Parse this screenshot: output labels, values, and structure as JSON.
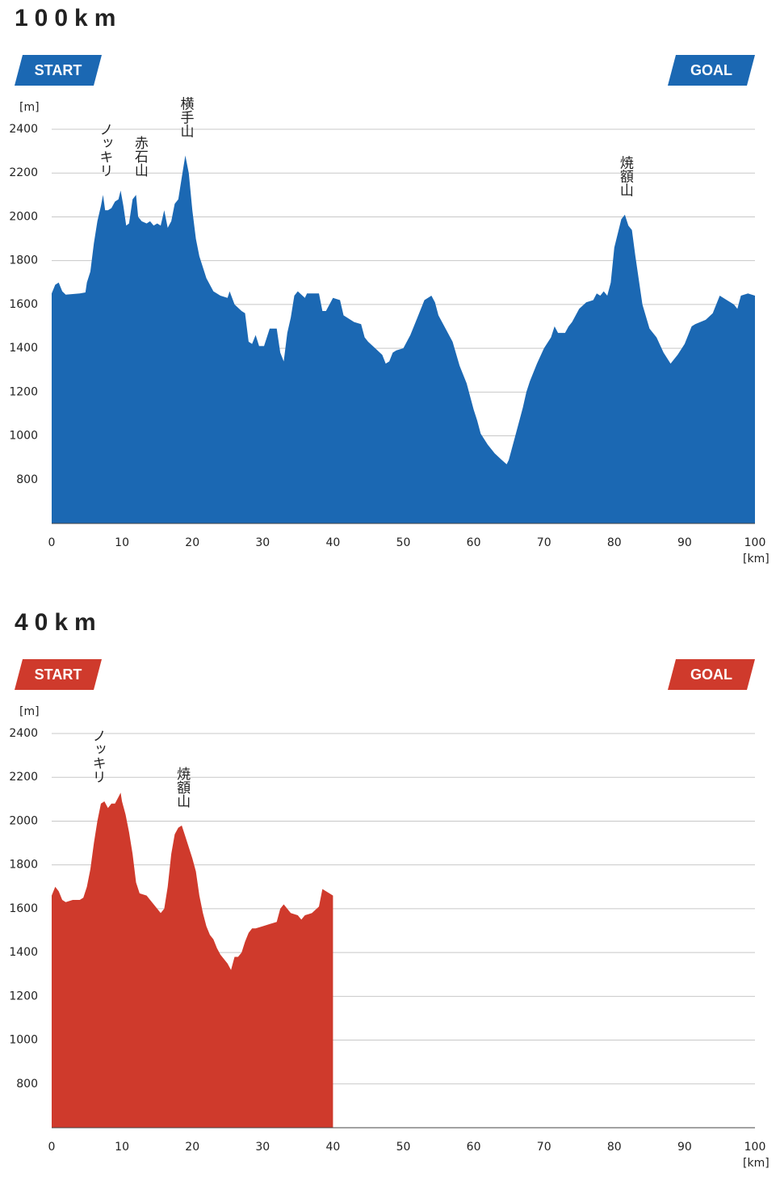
{
  "chart_data": [
    {
      "type": "area",
      "title": "100km",
      "color": "#1b68b3",
      "start_label": "START",
      "goal_label": "GOAL",
      "ylabel": "[m]",
      "xlabel": "[km]",
      "xlim": [
        0,
        100
      ],
      "ylim": [
        600,
        2400
      ],
      "xticks": [
        0,
        10,
        20,
        30,
        40,
        50,
        60,
        70,
        80,
        90,
        100
      ],
      "yticks": [
        800,
        1000,
        1200,
        1400,
        1600,
        1800,
        2000,
        2200,
        2400
      ],
      "grid": true,
      "annotations": [
        {
          "text": "ノッキリ",
          "x": 7.5
        },
        {
          "text": "赤石山",
          "x": 12.5
        },
        {
          "text": "横手山",
          "x": 19
        },
        {
          "text": "焼額山",
          "x": 81.5
        }
      ],
      "x": [
        0,
        0.5,
        1,
        1.5,
        2,
        4,
        4.8,
        5,
        5.5,
        6,
        6.5,
        7,
        7.3,
        7.6,
        8,
        8.5,
        9,
        9.5,
        9.8,
        10.2,
        10.6,
        11,
        11.5,
        12,
        12.3,
        12.8,
        13.5,
        14,
        14.5,
        15,
        15.5,
        16,
        16.5,
        17,
        17.5,
        18,
        18.5,
        19,
        19.5,
        20,
        20.5,
        21,
        22,
        23,
        24,
        25,
        25.3,
        26,
        27,
        27.5,
        28,
        28.5,
        29,
        29.5,
        30.2,
        31,
        32,
        32.5,
        33,
        33.5,
        34,
        34.5,
        35,
        36,
        36.3,
        38,
        38.5,
        39,
        40,
        41,
        41.5,
        43,
        44,
        44.5,
        45,
        46,
        47,
        47.5,
        48,
        48.5,
        49,
        50,
        51,
        52,
        53,
        54,
        54.5,
        55,
        56,
        57,
        58,
        59,
        60,
        60.5,
        61,
        62,
        63,
        64,
        64.7,
        65,
        66,
        67,
        67.5,
        68,
        69,
        70,
        71,
        71.5,
        72,
        73,
        73.5,
        74,
        75,
        76,
        77,
        77.5,
        78,
        78.5,
        79,
        79.5,
        80,
        81,
        81.5,
        82,
        82.5,
        83,
        84,
        85,
        86,
        87,
        88,
        89,
        90,
        91,
        91.5,
        93,
        94,
        95,
        96,
        97,
        97.5,
        98,
        99,
        100
      ],
      "values": [
        1650,
        1690,
        1700,
        1660,
        1645,
        1650,
        1655,
        1700,
        1750,
        1880,
        1980,
        2050,
        2100,
        2030,
        2030,
        2040,
        2070,
        2080,
        2120,
        2050,
        1960,
        1970,
        2080,
        2100,
        2000,
        1980,
        1970,
        1980,
        1960,
        1970,
        1960,
        2030,
        1950,
        1980,
        2060,
        2080,
        2180,
        2280,
        2200,
        2030,
        1900,
        1820,
        1720,
        1660,
        1640,
        1630,
        1660,
        1600,
        1570,
        1560,
        1430,
        1420,
        1460,
        1410,
        1410,
        1490,
        1490,
        1380,
        1340,
        1470,
        1540,
        1640,
        1660,
        1630,
        1650,
        1650,
        1570,
        1570,
        1630,
        1620,
        1550,
        1520,
        1510,
        1450,
        1430,
        1400,
        1370,
        1330,
        1340,
        1380,
        1390,
        1400,
        1460,
        1540,
        1620,
        1640,
        1610,
        1550,
        1490,
        1430,
        1320,
        1240,
        1120,
        1070,
        1010,
        960,
        920,
        890,
        870,
        890,
        1010,
        1130,
        1200,
        1250,
        1330,
        1400,
        1450,
        1500,
        1470,
        1470,
        1500,
        1520,
        1580,
        1610,
        1620,
        1650,
        1640,
        1660,
        1640,
        1700,
        1860,
        1990,
        2010,
        1960,
        1940,
        1820,
        1600,
        1490,
        1450,
        1380,
        1330,
        1370,
        1420,
        1500,
        1510,
        1530,
        1560,
        1640,
        1620,
        1600,
        1580,
        1640,
        1650,
        1640
      ]
    },
    {
      "type": "area",
      "title": "40km",
      "color": "#cf3a2c",
      "start_label": "START",
      "goal_label": "GOAL",
      "ylabel": "[m]",
      "xlabel": "[km]",
      "xlim": [
        0,
        100
      ],
      "ylim": [
        600,
        2400
      ],
      "xticks": [
        0,
        10,
        20,
        30,
        40,
        50,
        60,
        70,
        80,
        90,
        100
      ],
      "yticks": [
        800,
        1000,
        1200,
        1400,
        1600,
        1800,
        2000,
        2200,
        2400
      ],
      "grid": true,
      "annotations": [
        {
          "text": "ノッキリ",
          "x": 6.5
        },
        {
          "text": "焼額山",
          "x": 18.5
        }
      ],
      "x": [
        0,
        0.5,
        1,
        1.5,
        2,
        3,
        4,
        4.5,
        5,
        5.5,
        6,
        6.5,
        7,
        7.5,
        8,
        8.5,
        9,
        9.5,
        9.8,
        10,
        10.5,
        11,
        11.5,
        12,
        12.5,
        13.5,
        14,
        15,
        15.5,
        16,
        16.5,
        17,
        17.5,
        18,
        18.5,
        19,
        20,
        20.5,
        21,
        21.5,
        22,
        22.5,
        23,
        23.5,
        24,
        25,
        25.5,
        26,
        26.5,
        27,
        27.5,
        28,
        28.5,
        29,
        30,
        31,
        32,
        32.5,
        33,
        34,
        35,
        35.5,
        36,
        37,
        38,
        38.5,
        39,
        39.5,
        40
      ],
      "values": [
        1660,
        1700,
        1680,
        1640,
        1630,
        1640,
        1640,
        1650,
        1700,
        1780,
        1900,
        2000,
        2080,
        2090,
        2060,
        2080,
        2080,
        2110,
        2130,
        2090,
        2030,
        1950,
        1850,
        1720,
        1670,
        1660,
        1640,
        1600,
        1580,
        1600,
        1700,
        1850,
        1940,
        1970,
        1980,
        1930,
        1830,
        1770,
        1660,
        1580,
        1520,
        1480,
        1460,
        1420,
        1390,
        1350,
        1320,
        1380,
        1380,
        1400,
        1450,
        1490,
        1510,
        1510,
        1520,
        1530,
        1540,
        1600,
        1620,
        1580,
        1570,
        1550,
        1570,
        1580,
        1610,
        1690,
        1680,
        1670,
        1660
      ]
    }
  ]
}
